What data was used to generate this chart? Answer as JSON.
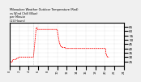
{
  "title": "Milwaukee Weather Outdoor Temperature (Red)\nvs Wind Chill (Blue)\nper Minute\n(24 Hours)",
  "line_color": "#ff0000",
  "wind_chill_color": "#0000ff",
  "bg_color": "#f0f0f0",
  "plot_bg": "#ffffff",
  "ylim": [
    20,
    70
  ],
  "yticks": [
    25,
    30,
    35,
    40,
    45,
    50,
    55,
    60,
    65
  ],
  "num_points": 1440,
  "temp_data": [
    28,
    27,
    27,
    26,
    26,
    26,
    25,
    25,
    25,
    25,
    25,
    25,
    25,
    25,
    24,
    24,
    24,
    24,
    24,
    24,
    24,
    24,
    24,
    24,
    24,
    24,
    24,
    24,
    24,
    24,
    25,
    25,
    25,
    25,
    26,
    26,
    26,
    26,
    27,
    27,
    27,
    27,
    27,
    27,
    27,
    27,
    27,
    27,
    27,
    27,
    27,
    27,
    27,
    27,
    27,
    27,
    27,
    27,
    27,
    27,
    27,
    27,
    27,
    27,
    27,
    27,
    27,
    27,
    27,
    27,
    27,
    27,
    27,
    28,
    28,
    28,
    28,
    28,
    28,
    28,
    28,
    28,
    28,
    28,
    28,
    28,
    28,
    28,
    28,
    29,
    29,
    29,
    29,
    29,
    29,
    29,
    29,
    29,
    29,
    29,
    29,
    29,
    29,
    29,
    29,
    29,
    29,
    29,
    29,
    30,
    30,
    30,
    30,
    30,
    30,
    30,
    30,
    30,
    30,
    30,
    30,
    30,
    30,
    30,
    30,
    30,
    30,
    30,
    30,
    30,
    30,
    30,
    30,
    30,
    30,
    30,
    30,
    30,
    30,
    30,
    30,
    30,
    30,
    30,
    30,
    30,
    30,
    30,
    30,
    30,
    30,
    30,
    30,
    30,
    30,
    30,
    30,
    30,
    30,
    30,
    30,
    30,
    30,
    30,
    30,
    30,
    30,
    30,
    30,
    30,
    30,
    30,
    30,
    30,
    30,
    30,
    30,
    30,
    30,
    30,
    30,
    30,
    30,
    30,
    30,
    30,
    30,
    30,
    30,
    30,
    30,
    30,
    30,
    30,
    30,
    30,
    30,
    30,
    30,
    30,
    30,
    30,
    30,
    30,
    30,
    30,
    30,
    30,
    30,
    30,
    30,
    30,
    30,
    30,
    30,
    30,
    30,
    30,
    30,
    30,
    30,
    30,
    30,
    30,
    30,
    30,
    30,
    30,
    30,
    30,
    30,
    30,
    30,
    30,
    30,
    30,
    30,
    30,
    30,
    30,
    30,
    30,
    30,
    30,
    30,
    30,
    30,
    30,
    30,
    30,
    30,
    30,
    30,
    30,
    30,
    30,
    30,
    30,
    30,
    30,
    30,
    30,
    30,
    30,
    30,
    30,
    30,
    30,
    30,
    30,
    30,
    30,
    30,
    30,
    30,
    30,
    30,
    30,
    30,
    30,
    30,
    30,
    30,
    30,
    30,
    30,
    30,
    30,
    30,
    30,
    30,
    30,
    30,
    30,
    30,
    30,
    30,
    30,
    30,
    30,
    31,
    31,
    32,
    33,
    34,
    35,
    36,
    37,
    38,
    39,
    40,
    41,
    42,
    43,
    44,
    45,
    46,
    47,
    48,
    49,
    50,
    51,
    52,
    53,
    54,
    55,
    56,
    57,
    58,
    59,
    60,
    61,
    62,
    63,
    64,
    64,
    64,
    64,
    64,
    64,
    64,
    64,
    64,
    64,
    64,
    63,
    63,
    63,
    63,
    62,
    62,
    62,
    62,
    62,
    62,
    62,
    62,
    62,
    62,
    62,
    62,
    62,
    62,
    62,
    62,
    62,
    62,
    62,
    62,
    62,
    62,
    62,
    62,
    62,
    62,
    62,
    62,
    62,
    62,
    62,
    62,
    62,
    62,
    62,
    62,
    62,
    62,
    62,
    62,
    62,
    62,
    62,
    62,
    62,
    62,
    62,
    62,
    62,
    62,
    62,
    62,
    62,
    62,
    62,
    62,
    62,
    62,
    62,
    62,
    62,
    62,
    62,
    62,
    62,
    62,
    62,
    62,
    62,
    62,
    62,
    62,
    62,
    62,
    62,
    62,
    62,
    62,
    62,
    62,
    62,
    62,
    62,
    62,
    62,
    62,
    62,
    62,
    62,
    62,
    62,
    62,
    62,
    62,
    62,
    62,
    62,
    62,
    62,
    62,
    62,
    62,
    62,
    62,
    62,
    62,
    62,
    62,
    62,
    62,
    62,
    62,
    62,
    62,
    62,
    62,
    62,
    62,
    62,
    62,
    62,
    62,
    62,
    62,
    62,
    62,
    62,
    62,
    62,
    62,
    62,
    62,
    62,
    62,
    62,
    62,
    62,
    62,
    62,
    62,
    62,
    62,
    62,
    62,
    62,
    62,
    62,
    62,
    62,
    62,
    62,
    62,
    62,
    62,
    62,
    62,
    62,
    62,
    62,
    62,
    62,
    62,
    62,
    62,
    62,
    62,
    62,
    62,
    62,
    62,
    62,
    62,
    62,
    62,
    62,
    62,
    62,
    62,
    62,
    62,
    62,
    62,
    62,
    62,
    62,
    62,
    62,
    62,
    62,
    62,
    62,
    62,
    62,
    62,
    62,
    62,
    62,
    62,
    62,
    62,
    62,
    62,
    62,
    62,
    62,
    62,
    62,
    62,
    62,
    62,
    62,
    62,
    62,
    62,
    62,
    62,
    62,
    62,
    62,
    62,
    62,
    62,
    62,
    62,
    62,
    62,
    62,
    62,
    62,
    62,
    62,
    62,
    62,
    62,
    62,
    62,
    62,
    62,
    62,
    62,
    62,
    62,
    62,
    62,
    62,
    62,
    62,
    62,
    62,
    62,
    62,
    61,
    60,
    60,
    59,
    58,
    58,
    57,
    56,
    56,
    55,
    55,
    54,
    54,
    53,
    53,
    52,
    52,
    51,
    51,
    50,
    50,
    49,
    49,
    48,
    48,
    47,
    47,
    47,
    46,
    46,
    46,
    45,
    45,
    45,
    44,
    44,
    44,
    44,
    43,
    43,
    43,
    43,
    43,
    43,
    43,
    43,
    43,
    43,
    42,
    42,
    42,
    42,
    42,
    42,
    42,
    42,
    42,
    42,
    42,
    41,
    41,
    41,
    41,
    41,
    41,
    41,
    41,
    41,
    41,
    41,
    41,
    41,
    41,
    41,
    41,
    41,
    41,
    41,
    41,
    41,
    41,
    41,
    41,
    41,
    41,
    41,
    41,
    41,
    41,
    41,
    41,
    41,
    41,
    41,
    41,
    41,
    41,
    41,
    41,
    40,
    40,
    40,
    40,
    40,
    40,
    40,
    40,
    40,
    40,
    40,
    40,
    40,
    40,
    40,
    40,
    40,
    40,
    40,
    40,
    40,
    40,
    40,
    40,
    40,
    40,
    40,
    40,
    40,
    40,
    40,
    40,
    40,
    40,
    40,
    40,
    40,
    40,
    40,
    40,
    40,
    40,
    40,
    40,
    40,
    40,
    40,
    40,
    40,
    40,
    40,
    40,
    40,
    40,
    40,
    40,
    40,
    40,
    40,
    40,
    40,
    40,
    40,
    40,
    40,
    40,
    40,
    40,
    40,
    40,
    40,
    40,
    40,
    40,
    40,
    40,
    40,
    40,
    40,
    40,
    40,
    40,
    40,
    40,
    40,
    40,
    40,
    40,
    40,
    40,
    40,
    40,
    40,
    40,
    40,
    40,
    40,
    40,
    40,
    40,
    40,
    40,
    40,
    40,
    40,
    40,
    40,
    40,
    40,
    40,
    40,
    40,
    40,
    40,
    40,
    40,
    40,
    40,
    40,
    40,
    40,
    40,
    40,
    40,
    40,
    40,
    40,
    40,
    40,
    40,
    40,
    40,
    40,
    40,
    40,
    40,
    40,
    40,
    40,
    40,
    40,
    40,
    40,
    40,
    40,
    40,
    40,
    40,
    40,
    40,
    40,
    40,
    40,
    40,
    40,
    40,
    40,
    40,
    40,
    40,
    40,
    40,
    40,
    40,
    40,
    40,
    40,
    40,
    40,
    40,
    40,
    40,
    40,
    40,
    40,
    40,
    40,
    40,
    40,
    40,
    40,
    40,
    40,
    40,
    40,
    40,
    40,
    40,
    40,
    40,
    40,
    40,
    40,
    40,
    40,
    40,
    40,
    40,
    40,
    40,
    40,
    40,
    40,
    40,
    40,
    40,
    40,
    40,
    40,
    40,
    40,
    40,
    40,
    40,
    40,
    40,
    40,
    40,
    40,
    40,
    40,
    40,
    40,
    40,
    40,
    40,
    40,
    40,
    40,
    40,
    40,
    40,
    40,
    40,
    40,
    40,
    40,
    40,
    40,
    40,
    40,
    40,
    40,
    40,
    40,
    40,
    40,
    40,
    40,
    40,
    40,
    40,
    40,
    40,
    40,
    40,
    40,
    40,
    40,
    40,
    40,
    40,
    40,
    40,
    40,
    40,
    40,
    40,
    40,
    40,
    40,
    40,
    40,
    40,
    40,
    40,
    40,
    40,
    40,
    40,
    40,
    40,
    40,
    40,
    40,
    40,
    40,
    40,
    40,
    40,
    40,
    40,
    40,
    40,
    40,
    40,
    40,
    40,
    40,
    40,
    40,
    40,
    40,
    40,
    40,
    40,
    40,
    40,
    40,
    40,
    40,
    40,
    40,
    40,
    40,
    40,
    40,
    40,
    40,
    40,
    40,
    40,
    40,
    40,
    40,
    40,
    40,
    40,
    40,
    40,
    40,
    40,
    40,
    40,
    40,
    40,
    40,
    40,
    40,
    40,
    40,
    40,
    40,
    40,
    40,
    40,
    40,
    40,
    40,
    40,
    40,
    40,
    40,
    40,
    40,
    40,
    40,
    40,
    40,
    40,
    40,
    40,
    40,
    40,
    40,
    40,
    40,
    40,
    40,
    40,
    40,
    40,
    40,
    40,
    40,
    40,
    40,
    40,
    40,
    40,
    40,
    40,
    40,
    40,
    40,
    40,
    40,
    40,
    40,
    40,
    40,
    40,
    40,
    40,
    40,
    40,
    40,
    40,
    40,
    40,
    40,
    40,
    40,
    40,
    40,
    40,
    40,
    40,
    40,
    40,
    40,
    40,
    40,
    40,
    40,
    40,
    40,
    40,
    40,
    40,
    40,
    40,
    40,
    40,
    40,
    40,
    40,
    40,
    40,
    40,
    40,
    40,
    40,
    40,
    40,
    40,
    40,
    40,
    40,
    40,
    40,
    40,
    40,
    40,
    40,
    40,
    40,
    40,
    40,
    40,
    40,
    40,
    40,
    40,
    40,
    40,
    40,
    40,
    40,
    40,
    40,
    40,
    40,
    40,
    40,
    40,
    40,
    40,
    40,
    40,
    40,
    40,
    40,
    40,
    40,
    40,
    40,
    40,
    40,
    40,
    40,
    40,
    40,
    40,
    40,
    40,
    40,
    40,
    40,
    40,
    40,
    40,
    40,
    40,
    40,
    40,
    40,
    40,
    40,
    40,
    40,
    40,
    40,
    40,
    40,
    40,
    40,
    40,
    40,
    40,
    40,
    36,
    35,
    35,
    34,
    34,
    33,
    33,
    33,
    33,
    33,
    32,
    32,
    32,
    31,
    31,
    31,
    31,
    31,
    31,
    30,
    30,
    30,
    30,
    30,
    30,
    30,
    30,
    30,
    30,
    30,
    30,
    30,
    30,
    30,
    30,
    30,
    30,
    30,
    30,
    30
  ],
  "vline_x": 300,
  "time_labels": [
    "0",
    "2",
    "4",
    "6",
    "8",
    "10",
    "12",
    "14",
    "16",
    "18",
    "20",
    "22",
    "24"
  ],
  "xtick_positions": [
    0,
    120,
    240,
    360,
    480,
    600,
    720,
    840,
    960,
    1080,
    1200,
    1320,
    1440
  ]
}
